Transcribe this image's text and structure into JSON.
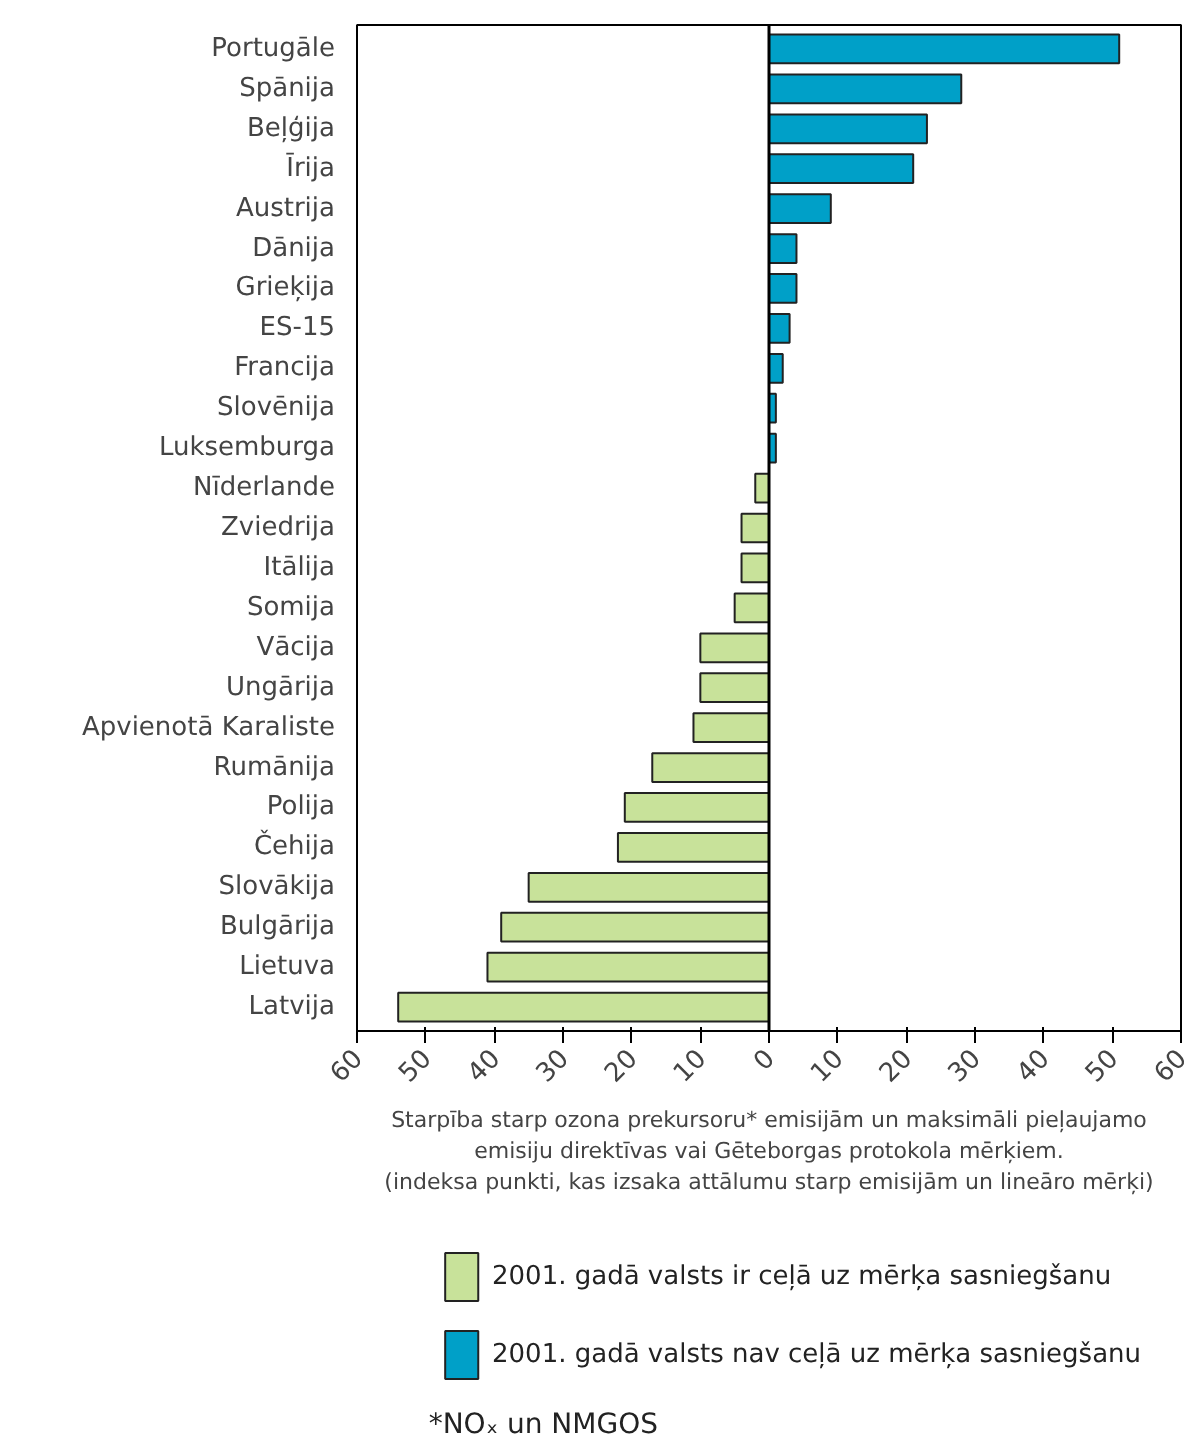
{
  "chart_data": {
    "type": "bar",
    "orientation": "horizontal",
    "categories": [
      "Portugāle",
      "Spānija",
      "Beļģija",
      "Īrija",
      "Austrija",
      "Dānija",
      "Grieķija",
      "ES-15",
      "Francija",
      "Slovēnija",
      "Luksemburga",
      "Nīderlande",
      "Zviedrija",
      "Itālija",
      "Somija",
      "Vācija",
      "Ungārija",
      "Apvienotā Karaliste",
      "Rumānija",
      "Polija",
      "Čehija",
      "Slovākija",
      "Bulgārija",
      "Lietuva",
      "Latvija"
    ],
    "series": [
      {
        "name": "2001. gadā valsts ir ceļā uz mērķa sasniegšanu",
        "color": "#c8e29a",
        "values": [
          null,
          null,
          null,
          null,
          null,
          null,
          null,
          null,
          null,
          null,
          null,
          -2,
          -4,
          -4,
          -5,
          -10,
          -10,
          -11,
          -17,
          -21,
          -22,
          -35,
          -39,
          -41,
          -54
        ]
      },
      {
        "name": "2001. gadā valsts nav ceļā uz mērķa sasniegšanu",
        "color": "#00a0c8",
        "values": [
          51,
          28,
          23,
          21,
          9,
          4,
          4,
          3,
          2,
          1,
          1,
          null,
          null,
          null,
          null,
          null,
          null,
          null,
          null,
          null,
          null,
          null,
          null,
          null,
          null
        ]
      }
    ],
    "xlim": [
      -60,
      60
    ],
    "xticks": [
      {
        "value": -60,
        "label": "60"
      },
      {
        "value": -50,
        "label": "50"
      },
      {
        "value": -40,
        "label": "40"
      },
      {
        "value": -30,
        "label": "30"
      },
      {
        "value": -20,
        "label": "20"
      },
      {
        "value": -10,
        "label": "10"
      },
      0,
      10,
      20,
      30,
      40,
      50,
      60
    ],
    "xlabel": "Starpība starp ozona prekursoru* emisijām un maksimāli pieļaujamo\nemisiju direktīvas vai Gēteborgas protokola mērķiem.\n(indeksa punkti, kas izsaka attālumu starp emisijām un lineāro mērķi)",
    "ref_lines": [
      {
        "axis": "x",
        "value": 0,
        "color": "#000000"
      }
    ],
    "annotations": [
      "*NOₓ un NMGOS"
    ],
    "legend": "bottom",
    "grid": false
  }
}
